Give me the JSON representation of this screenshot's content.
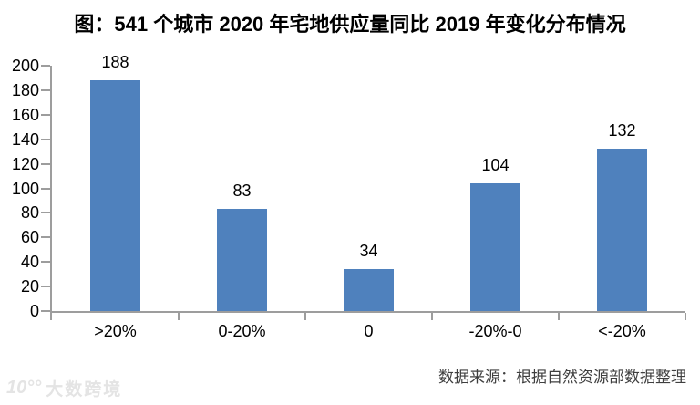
{
  "chart_data": {
    "type": "bar",
    "title": "图：541 个城市 2020 年宅地供应量同比 2019 年变化分布情况",
    "categories": [
      ">20%",
      "0-20%",
      "0",
      "-20%-0",
      "<-20%"
    ],
    "values": [
      188,
      83,
      34,
      104,
      132
    ],
    "xlabel": "",
    "ylabel": "",
    "ylim": [
      0,
      200
    ],
    "ytick_step": 20,
    "grid": false,
    "legend": false,
    "value_labels": true,
    "bar_color": "#4f81bd",
    "axis_color": "#9d9d9d",
    "label_color": "#000000"
  },
  "source_note": "数据来源：根据自然资源部数据整理",
  "watermark": {
    "logo": "10°°",
    "text": "大数跨境"
  }
}
